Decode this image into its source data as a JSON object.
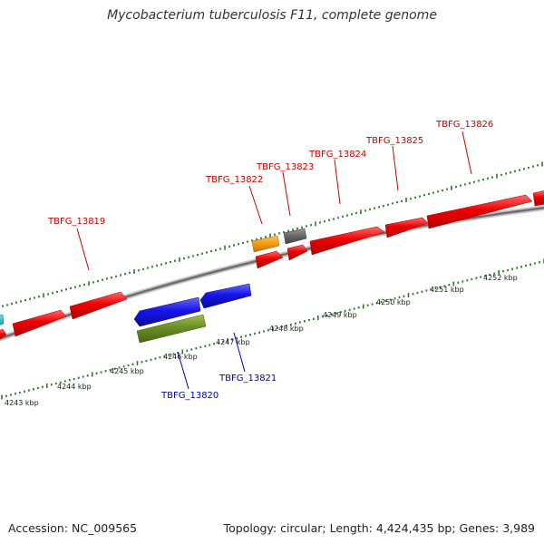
{
  "title": "Mycobacterium tuberculosis F11, complete genome",
  "footer": {
    "accession": "Accession: NC_009565",
    "topology": "Topology: circular; Length: 4,424,435 bp; Genes: 3,989"
  },
  "colors": {
    "forward_gene": "#e60000",
    "reverse_gene": "#1a1ae6",
    "olive_gene": "#6b8e23",
    "orange_gene": "#f39c12",
    "gray_gene": "#666666",
    "backbone": "#888888",
    "ticks": "#2a7a2a",
    "label_top": "#cc0000",
    "label_bottom": "#0000aa"
  },
  "gene_labels_top": [
    "TBFG_13819",
    "TBFG_13822",
    "TBFG_13823",
    "TBFG_13824",
    "TBFG_13825",
    "TBFG_13826"
  ],
  "gene_labels_bottom": [
    "TBFG_13820",
    "TBFG_13821"
  ],
  "kbp_labels": [
    "4243 kbp",
    "4244 kbp",
    "4245 kbp",
    "4246 kbp",
    "4247 kbp",
    "4248 kbp",
    "4249 kbp",
    "4250 kbp",
    "4251 kbp",
    "4252 kbp"
  ]
}
